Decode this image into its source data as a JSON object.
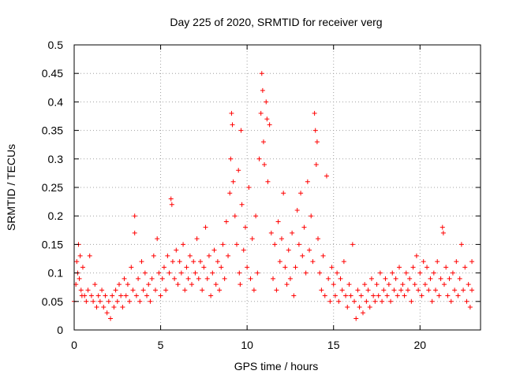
{
  "chart_data": {
    "type": "scatter",
    "title": "Day 225 of 2020, SRMTID for receiver verg",
    "xlabel": "GPS time / hours",
    "ylabel": "SRMTID / TECUs",
    "xlim": [
      0,
      23.5
    ],
    "ylim": [
      0,
      0.5
    ],
    "xticks": [
      0,
      5,
      10,
      15,
      20
    ],
    "yticks": [
      0,
      0.05,
      0.1,
      0.15,
      0.2,
      0.25,
      0.3,
      0.35,
      0.4,
      0.45,
      0.5
    ],
    "grid": true,
    "marker": "+",
    "series": [
      {
        "name": "SRMTID",
        "color": "#ff0000",
        "points": [
          [
            0.0,
            0.05
          ],
          [
            0.1,
            0.08
          ],
          [
            0.15,
            0.12
          ],
          [
            0.2,
            0.1
          ],
          [
            0.25,
            0.15
          ],
          [
            0.3,
            0.09
          ],
          [
            0.35,
            0.13
          ],
          [
            0.4,
            0.07
          ],
          [
            0.45,
            0.06
          ],
          [
            0.5,
            0.11
          ],
          [
            0.6,
            0.06
          ],
          [
            0.7,
            0.05
          ],
          [
            0.8,
            0.07
          ],
          [
            0.9,
            0.13
          ],
          [
            1.0,
            0.06
          ],
          [
            1.1,
            0.05
          ],
          [
            1.2,
            0.08
          ],
          [
            1.3,
            0.04
          ],
          [
            1.4,
            0.06
          ],
          [
            1.5,
            0.05
          ],
          [
            1.6,
            0.07
          ],
          [
            1.7,
            0.04
          ],
          [
            1.8,
            0.06
          ],
          [
            1.9,
            0.03
          ],
          [
            2.0,
            0.05
          ],
          [
            2.1,
            0.02
          ],
          [
            2.2,
            0.06
          ],
          [
            2.3,
            0.04
          ],
          [
            2.4,
            0.07
          ],
          [
            2.5,
            0.05
          ],
          [
            2.6,
            0.08
          ],
          [
            2.7,
            0.06
          ],
          [
            2.8,
            0.04
          ],
          [
            2.9,
            0.09
          ],
          [
            3.0,
            0.06
          ],
          [
            3.1,
            0.08
          ],
          [
            3.2,
            0.05
          ],
          [
            3.3,
            0.11
          ],
          [
            3.4,
            0.07
          ],
          [
            3.5,
            0.2
          ],
          [
            3.5,
            0.17
          ],
          [
            3.6,
            0.06
          ],
          [
            3.7,
            0.09
          ],
          [
            3.8,
            0.05
          ],
          [
            3.9,
            0.12
          ],
          [
            4.0,
            0.07
          ],
          [
            4.1,
            0.1
          ],
          [
            4.2,
            0.06
          ],
          [
            4.3,
            0.08
          ],
          [
            4.4,
            0.05
          ],
          [
            4.5,
            0.09
          ],
          [
            4.6,
            0.13
          ],
          [
            4.7,
            0.07
          ],
          [
            4.8,
            0.16
          ],
          [
            4.9,
            0.1
          ],
          [
            5.0,
            0.06
          ],
          [
            5.1,
            0.09
          ],
          [
            5.2,
            0.11
          ],
          [
            5.3,
            0.07
          ],
          [
            5.4,
            0.13
          ],
          [
            5.5,
            0.1
          ],
          [
            5.6,
            0.23
          ],
          [
            5.65,
            0.22
          ],
          [
            5.7,
            0.12
          ],
          [
            5.8,
            0.09
          ],
          [
            5.9,
            0.14
          ],
          [
            6.0,
            0.08
          ],
          [
            6.1,
            0.12
          ],
          [
            6.2,
            0.1
          ],
          [
            6.3,
            0.15
          ],
          [
            6.4,
            0.07
          ],
          [
            6.5,
            0.11
          ],
          [
            6.6,
            0.09
          ],
          [
            6.7,
            0.13
          ],
          [
            6.8,
            0.08
          ],
          [
            6.9,
            0.12
          ],
          [
            7.0,
            0.1
          ],
          [
            7.1,
            0.16
          ],
          [
            7.2,
            0.09
          ],
          [
            7.3,
            0.12
          ],
          [
            7.4,
            0.07
          ],
          [
            7.5,
            0.11
          ],
          [
            7.6,
            0.18
          ],
          [
            7.7,
            0.09
          ],
          [
            7.8,
            0.13
          ],
          [
            7.9,
            0.06
          ],
          [
            8.0,
            0.1
          ],
          [
            8.1,
            0.14
          ],
          [
            8.2,
            0.08
          ],
          [
            8.3,
            0.12
          ],
          [
            8.4,
            0.07
          ],
          [
            8.5,
            0.11
          ],
          [
            8.6,
            0.15
          ],
          [
            8.7,
            0.09
          ],
          [
            8.8,
            0.19
          ],
          [
            8.9,
            0.13
          ],
          [
            9.0,
            0.24
          ],
          [
            9.05,
            0.3
          ],
          [
            9.1,
            0.38
          ],
          [
            9.15,
            0.36
          ],
          [
            9.2,
            0.26
          ],
          [
            9.3,
            0.2
          ],
          [
            9.4,
            0.15
          ],
          [
            9.5,
            0.28
          ],
          [
            9.55,
            0.1
          ],
          [
            9.6,
            0.08
          ],
          [
            9.65,
            0.35
          ],
          [
            9.7,
            0.22
          ],
          [
            9.8,
            0.14
          ],
          [
            9.9,
            0.18
          ],
          [
            10.0,
            0.11
          ],
          [
            10.1,
            0.25
          ],
          [
            10.2,
            0.09
          ],
          [
            10.3,
            0.16
          ],
          [
            10.4,
            0.07
          ],
          [
            10.5,
            0.2
          ],
          [
            10.6,
            0.1
          ],
          [
            10.7,
            0.3
          ],
          [
            10.8,
            0.38
          ],
          [
            10.85,
            0.45
          ],
          [
            10.9,
            0.42
          ],
          [
            10.95,
            0.33
          ],
          [
            11.0,
            0.29
          ],
          [
            11.1,
            0.4
          ],
          [
            11.15,
            0.37
          ],
          [
            11.2,
            0.26
          ],
          [
            11.3,
            0.36
          ],
          [
            11.4,
            0.17
          ],
          [
            11.5,
            0.09
          ],
          [
            11.6,
            0.15
          ],
          [
            11.7,
            0.07
          ],
          [
            11.8,
            0.19
          ],
          [
            11.9,
            0.12
          ],
          [
            12.0,
            0.16
          ],
          [
            12.1,
            0.24
          ],
          [
            12.2,
            0.11
          ],
          [
            12.3,
            0.08
          ],
          [
            12.4,
            0.14
          ],
          [
            12.5,
            0.09
          ],
          [
            12.6,
            0.17
          ],
          [
            12.7,
            0.06
          ],
          [
            12.8,
            0.11
          ],
          [
            12.9,
            0.21
          ],
          [
            13.0,
            0.15
          ],
          [
            13.1,
            0.24
          ],
          [
            13.2,
            0.13
          ],
          [
            13.3,
            0.18
          ],
          [
            13.4,
            0.1
          ],
          [
            13.5,
            0.26
          ],
          [
            13.6,
            0.14
          ],
          [
            13.7,
            0.2
          ],
          [
            13.8,
            0.12
          ],
          [
            13.9,
            0.38
          ],
          [
            13.95,
            0.35
          ],
          [
            14.0,
            0.29
          ],
          [
            14.05,
            0.33
          ],
          [
            14.1,
            0.16
          ],
          [
            14.2,
            0.1
          ],
          [
            14.3,
            0.07
          ],
          [
            14.4,
            0.13
          ],
          [
            14.5,
            0.06
          ],
          [
            14.6,
            0.27
          ],
          [
            14.7,
            0.09
          ],
          [
            14.8,
            0.05
          ],
          [
            14.9,
            0.11
          ],
          [
            15.0,
            0.08
          ],
          [
            15.1,
            0.06
          ],
          [
            15.2,
            0.1
          ],
          [
            15.3,
            0.05
          ],
          [
            15.4,
            0.09
          ],
          [
            15.5,
            0.07
          ],
          [
            15.6,
            0.12
          ],
          [
            15.7,
            0.06
          ],
          [
            15.8,
            0.04
          ],
          [
            15.9,
            0.08
          ],
          [
            16.0,
            0.06
          ],
          [
            16.1,
            0.15
          ],
          [
            16.2,
            0.05
          ],
          [
            16.3,
            0.02
          ],
          [
            16.4,
            0.07
          ],
          [
            16.5,
            0.04
          ],
          [
            16.6,
            0.06
          ],
          [
            16.7,
            0.03
          ],
          [
            16.8,
            0.08
          ],
          [
            16.9,
            0.05
          ],
          [
            17.0,
            0.07
          ],
          [
            17.1,
            0.04
          ],
          [
            17.2,
            0.09
          ],
          [
            17.3,
            0.06
          ],
          [
            17.4,
            0.05
          ],
          [
            17.5,
            0.08
          ],
          [
            17.6,
            0.06
          ],
          [
            17.7,
            0.1
          ],
          [
            17.8,
            0.05
          ],
          [
            17.9,
            0.07
          ],
          [
            18.0,
            0.09
          ],
          [
            18.1,
            0.06
          ],
          [
            18.2,
            0.08
          ],
          [
            18.3,
            0.05
          ],
          [
            18.4,
            0.1
          ],
          [
            18.5,
            0.07
          ],
          [
            18.6,
            0.09
          ],
          [
            18.7,
            0.06
          ],
          [
            18.8,
            0.11
          ],
          [
            18.9,
            0.07
          ],
          [
            19.0,
            0.08
          ],
          [
            19.1,
            0.06
          ],
          [
            19.2,
            0.1
          ],
          [
            19.3,
            0.07
          ],
          [
            19.4,
            0.09
          ],
          [
            19.5,
            0.05
          ],
          [
            19.6,
            0.11
          ],
          [
            19.7,
            0.08
          ],
          [
            19.8,
            0.13
          ],
          [
            19.9,
            0.07
          ],
          [
            20.0,
            0.1
          ],
          [
            20.1,
            0.06
          ],
          [
            20.2,
            0.12
          ],
          [
            20.3,
            0.08
          ],
          [
            20.4,
            0.11
          ],
          [
            20.5,
            0.07
          ],
          [
            20.6,
            0.09
          ],
          [
            20.7,
            0.05
          ],
          [
            20.8,
            0.1
          ],
          [
            20.9,
            0.07
          ],
          [
            21.0,
            0.12
          ],
          [
            21.1,
            0.06
          ],
          [
            21.2,
            0.09
          ],
          [
            21.3,
            0.18
          ],
          [
            21.35,
            0.17
          ],
          [
            21.4,
            0.08
          ],
          [
            21.5,
            0.11
          ],
          [
            21.6,
            0.06
          ],
          [
            21.7,
            0.09
          ],
          [
            21.8,
            0.05
          ],
          [
            21.9,
            0.1
          ],
          [
            22.0,
            0.07
          ],
          [
            22.1,
            0.12
          ],
          [
            22.2,
            0.06
          ],
          [
            22.3,
            0.09
          ],
          [
            22.4,
            0.15
          ],
          [
            22.5,
            0.07
          ],
          [
            22.6,
            0.11
          ],
          [
            22.7,
            0.05
          ],
          [
            22.8,
            0.08
          ],
          [
            22.9,
            0.04
          ],
          [
            23.0,
            0.07
          ],
          [
            23.0,
            0.12
          ]
        ]
      }
    ]
  }
}
